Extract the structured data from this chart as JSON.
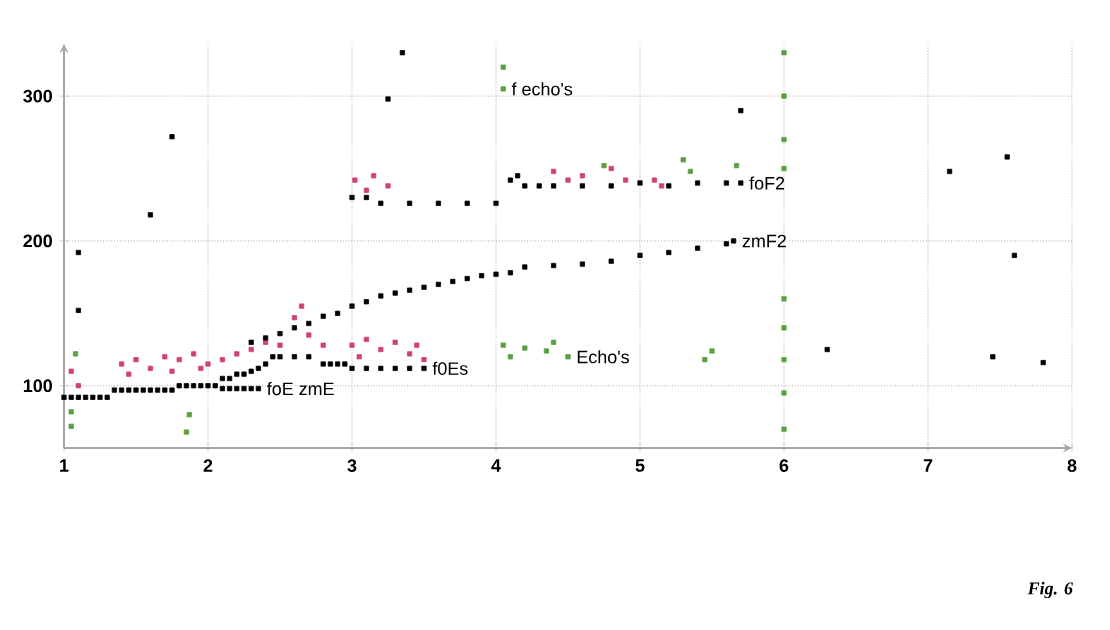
{
  "chart_data": {
    "type": "scatter",
    "xlim": [
      1,
      8
    ],
    "ylim": [
      57,
      336
    ],
    "xticks": [
      1,
      2,
      3,
      4,
      5,
      6,
      7,
      8
    ],
    "yticks": [
      100,
      200,
      300
    ],
    "grid": true,
    "marker": "square",
    "series": [
      {
        "color": "#d0407a",
        "x": [
          1.05,
          1.1,
          1.4,
          1.45,
          1.5,
          1.6,
          1.7,
          1.75,
          1.8,
          1.9,
          1.95,
          2.0,
          2.1,
          2.2,
          2.3,
          2.4,
          2.5,
          2.6,
          2.65,
          2.7,
          2.8,
          3.0,
          3.05,
          3.1,
          3.2,
          3.3,
          3.4,
          3.45,
          3.5,
          3.02,
          3.1,
          3.15,
          3.25,
          4.4,
          4.5,
          4.6,
          4.8,
          4.9,
          5.1,
          5.15
        ],
        "values": [
          110,
          100,
          115,
          108,
          118,
          112,
          120,
          110,
          118,
          122,
          112,
          115,
          118,
          122,
          125,
          130,
          128,
          147,
          155,
          135,
          128,
          128,
          120,
          132,
          125,
          130,
          122,
          128,
          118,
          242,
          235,
          245,
          238,
          248,
          242,
          245,
          250,
          242,
          242,
          238
        ]
      },
      {
        "color": "#5aa040",
        "x": [
          1.05,
          1.05,
          1.08,
          1.85,
          1.87,
          4.05,
          4.1,
          4.2,
          4.35,
          4.4,
          4.5,
          5.45,
          5.5,
          6.0,
          6.0,
          6.0,
          6.0,
          6.0,
          6.0,
          6.0,
          6.0,
          6.0,
          4.05,
          4.05,
          4.75,
          5.3,
          5.35,
          5.67
        ],
        "values": [
          72,
          82,
          122,
          68,
          80,
          128,
          120,
          126,
          124,
          130,
          120,
          118,
          124,
          70,
          95,
          118,
          140,
          160,
          250,
          270,
          300,
          330,
          320,
          305,
          252,
          256,
          248,
          252
        ]
      },
      {
        "color": "#000000",
        "x": [
          2.1,
          2.15,
          2.2,
          2.25,
          2.3,
          2.35,
          1.0,
          1.05,
          1.1,
          1.15,
          1.2,
          1.25,
          1.3,
          1.35,
          1.4,
          1.45,
          1.5,
          1.55,
          1.6,
          1.65,
          1.7,
          1.75,
          1.8,
          1.85,
          1.9,
          1.95,
          2.0,
          2.05,
          2.1,
          2.15,
          2.2,
          2.25,
          2.3,
          2.35,
          2.4,
          2.45,
          2.5,
          2.6,
          2.7,
          2.8,
          2.85,
          2.9,
          2.95,
          3.0,
          3.1,
          3.2,
          3.3,
          3.4,
          3.5,
          2.3,
          2.4,
          2.5,
          2.6,
          2.7,
          2.8,
          2.9,
          3.0,
          3.1,
          3.2,
          3.3,
          3.4,
          3.5,
          3.6,
          3.7,
          3.8,
          3.9,
          4.0,
          4.1,
          4.2,
          4.4,
          4.6,
          4.8,
          5.0,
          5.2,
          5.4,
          5.6,
          5.65,
          3.0,
          3.1,
          3.2,
          3.4,
          3.6,
          3.8,
          4.0,
          4.1,
          4.15,
          4.2,
          4.3,
          4.4,
          4.6,
          4.8,
          5.0,
          5.2,
          5.4,
          5.6,
          5.7,
          1.1,
          1.1,
          1.6,
          1.75,
          3.25,
          3.35,
          5.7,
          7.15,
          7.55,
          7.6,
          6.3,
          7.45,
          7.8
        ],
        "values": [
          98,
          98,
          98,
          98,
          98,
          98,
          92,
          92,
          92,
          92,
          92,
          92,
          92,
          97,
          97,
          97,
          97,
          97,
          97,
          97,
          97,
          97,
          100,
          100,
          100,
          100,
          100,
          100,
          105,
          105,
          108,
          108,
          110,
          112,
          115,
          120,
          120,
          120,
          120,
          115,
          115,
          115,
          115,
          112,
          112,
          112,
          112,
          112,
          112,
          130,
          133,
          136,
          140,
          143,
          148,
          150,
          155,
          158,
          162,
          164,
          166,
          168,
          170,
          172,
          174,
          176,
          177,
          178,
          182,
          183,
          184,
          186,
          190,
          192,
          195,
          198,
          200,
          230,
          230,
          226,
          226,
          226,
          226,
          226,
          242,
          245,
          238,
          238,
          238,
          238,
          238,
          240,
          238,
          240,
          240,
          240,
          192,
          152,
          218,
          272,
          298,
          330,
          290,
          248,
          258,
          190,
          125,
          120,
          116
        ]
      }
    ],
    "annotations": [
      {
        "text": "f echo's",
        "x": 4.05,
        "y": 305
      },
      {
        "text": "foF2",
        "x": 5.7,
        "y": 240
      },
      {
        "text": "zmF2",
        "x": 5.65,
        "y": 200
      },
      {
        "text": "Echo's",
        "x": 4.5,
        "y": 120
      },
      {
        "text": "foE  zmE",
        "x": 2.35,
        "y": 98
      },
      {
        "text": "f0Es",
        "x": 3.5,
        "y": 112
      },
      "Fig. 6"
    ]
  }
}
